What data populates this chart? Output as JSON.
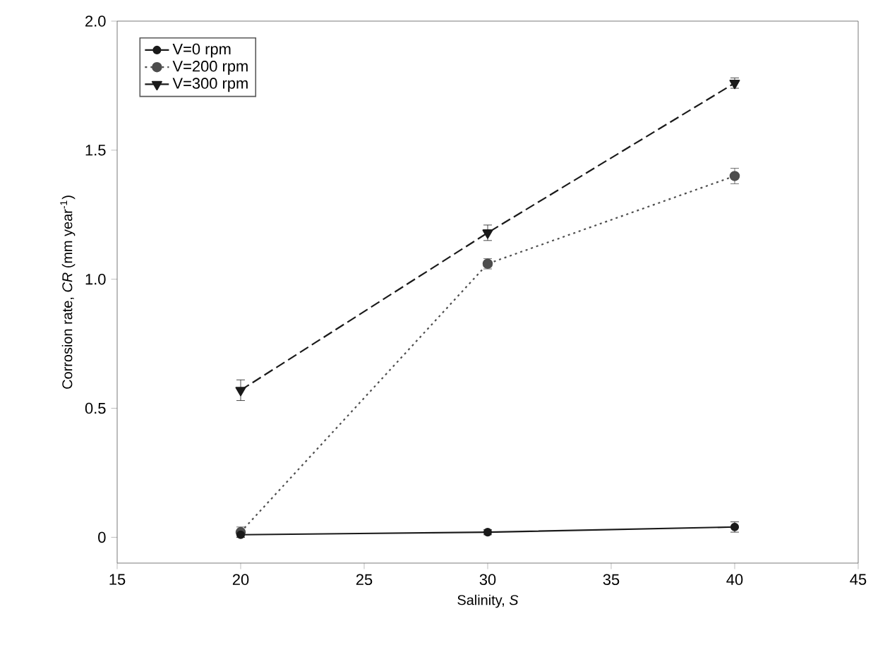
{
  "chart_data": {
    "type": "line",
    "xlabel": "Salinity, *S*",
    "ylabel": "Corrosion rate, *CR* (mm year$^{-1}$)",
    "xlim": [
      15,
      45
    ],
    "xticks": [
      15,
      20,
      25,
      30,
      35,
      40,
      45
    ],
    "ylim": [
      -0.1,
      2.0
    ],
    "yticks": [
      {
        "value": 0,
        "label": "0"
      },
      0.5,
      {
        "value": 1,
        "label": "1.0"
      },
      1.5,
      {
        "value": 2,
        "label": "2.0"
      }
    ],
    "x": [
      20,
      30,
      40
    ],
    "series": [
      {
        "name": "V=0 rpm",
        "color": "#1a1a1a",
        "values": [
          0.01,
          0.02,
          0.04
        ],
        "errors": [
          0.01,
          0.01,
          0.02
        ],
        "marker": "circle",
        "line_style": "solid"
      },
      {
        "name": "V=200 rpm",
        "color": "#4d4d4d",
        "values": [
          0.02,
          1.06,
          1.4
        ],
        "errors": [
          0.02,
          0.02,
          0.03
        ],
        "marker": "circle",
        "line_style": "dotted"
      },
      {
        "name": "V=300 rpm",
        "color": "#1a1a1a",
        "values": [
          0.57,
          1.18,
          1.76
        ],
        "errors": [
          0.04,
          0.03,
          0.02
        ],
        "marker": "triangle",
        "line_style": "dashed"
      }
    ],
    "legend": "top left",
    "grid": false
  }
}
